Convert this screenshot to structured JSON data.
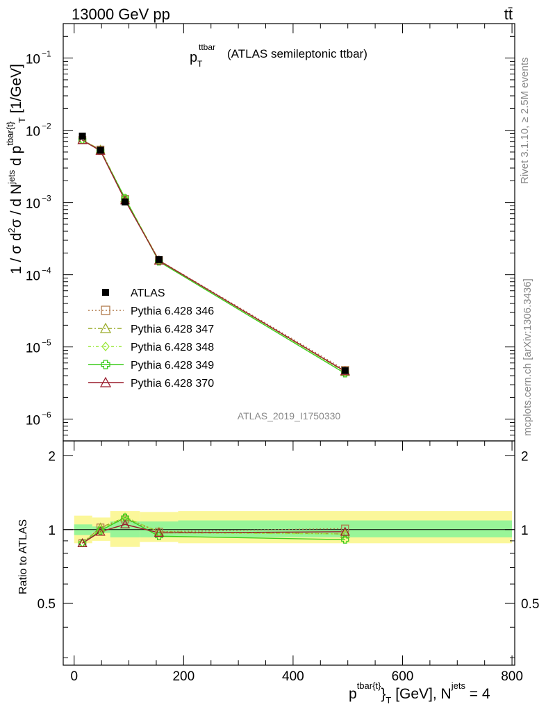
{
  "header": {
    "left": "13000 GeV pp",
    "right": "tt̄"
  },
  "plot_title": {
    "main": "p",
    "sub": "T",
    "sup": "ttbar",
    "rest": "(ATLAS semileptonic ttbar)"
  },
  "side_text": {
    "rivet": "Rivet 3.1.10, ≥ 2.5M events",
    "mcplots": "mcplots.cern.ch [arXiv:1306.3436]"
  },
  "analysis_id": "ATLAS_2019_I1750330",
  "y_axis_label": {
    "part1": "1 / σ d",
    "sup1": "2",
    "part2": "σ / d N",
    "sup2": "jets",
    "part3": " d p",
    "sup3": "tbar{t}",
    "sub3": "T",
    "part4": " [1/GeV]"
  },
  "ratio_axis_label": "Ratio to ATLAS",
  "x_axis_label": {
    "p": "p",
    "sup": "tbar{t}",
    "brace": "}",
    "sub": "T",
    "rest": " [GeV], N",
    "sup2": "jets",
    "end": " = 4"
  },
  "main_ticks": {
    "y": [
      {
        "base": "10",
        "exp": "−1"
      },
      {
        "base": "10",
        "exp": "−2"
      },
      {
        "base": "10",
        "exp": "−3"
      },
      {
        "base": "10",
        "exp": "−4"
      },
      {
        "base": "10",
        "exp": "−5"
      },
      {
        "base": "10",
        "exp": "−6"
      }
    ]
  },
  "ratio_ticks": {
    "left": [
      "2",
      "1",
      "0.5"
    ],
    "right": [
      "2",
      "1",
      "0.5"
    ]
  },
  "x_ticks": [
    "0",
    "200",
    "400",
    "600",
    "800"
  ],
  "legend": [
    {
      "label": "ATLAS",
      "color": "#000000",
      "marker": "square-filled",
      "dash": "none"
    },
    {
      "label": "Pythia 6.428 346",
      "color": "#b07a4a",
      "marker": "square-open",
      "dash": "dotted"
    },
    {
      "label": "Pythia 6.428 347",
      "color": "#9aab2a",
      "marker": "triangle-open",
      "dash": "dashdot"
    },
    {
      "label": "Pythia 6.428 348",
      "color": "#9ae83a",
      "marker": "diamond-open",
      "dash": "dashdot2"
    },
    {
      "label": "Pythia 6.428 349",
      "color": "#3ccc1c",
      "marker": "cross-open",
      "dash": "solid"
    },
    {
      "label": "Pythia 6.428 370",
      "color": "#9a1c2c",
      "marker": "triangle-open",
      "dash": "solid"
    }
  ],
  "chart_data": {
    "type": "line",
    "xlim": [
      -20,
      805
    ],
    "ylim": [
      5e-07,
      0.3
    ],
    "y_scale": "log",
    "ratio_ylim": [
      0.28,
      2.3
    ],
    "ratio_y_scale": "log",
    "x_bin_edges": [
      0,
      33,
      66,
      120,
      190,
      800
    ],
    "x": [
      15,
      48,
      93,
      155,
      495
    ],
    "data": {
      "name": "ATLAS",
      "values": [
        0.0083,
        0.0053,
        0.00102,
        0.000162,
        4.7e-06
      ],
      "ratio_band_stat": [
        [
          0.95,
          1.05
        ],
        [
          0.97,
          1.03
        ],
        [
          0.93,
          1.08
        ],
        [
          0.93,
          1.08
        ],
        [
          0.93,
          1.09
        ]
      ],
      "ratio_band_total": [
        [
          0.88,
          1.14
        ],
        [
          0.9,
          1.12
        ],
        [
          0.85,
          1.19
        ],
        [
          0.89,
          1.18
        ],
        [
          0.88,
          1.19
        ]
      ]
    },
    "series": [
      {
        "name": "Pythia 6.428 346",
        "values": [
          0.0073,
          0.0054,
          0.00112,
          0.000159,
          4.8e-06
        ],
        "ratio": [
          0.88,
          1.02,
          1.1,
          0.98,
          1.01
        ]
      },
      {
        "name": "Pythia 6.428 347",
        "values": [
          0.0073,
          0.0054,
          0.00114,
          0.000158,
          4.5e-06
        ],
        "ratio": [
          0.88,
          1.02,
          1.12,
          0.98,
          0.96
        ]
      },
      {
        "name": "Pythia 6.428 348",
        "values": [
          0.0073,
          0.0053,
          0.00115,
          0.000157,
          4.5e-06
        ],
        "ratio": [
          0.88,
          1.0,
          1.13,
          0.97,
          0.96
        ]
      },
      {
        "name": "Pythia 6.428 349",
        "values": [
          0.0073,
          0.0052,
          0.00114,
          0.000152,
          4.3e-06
        ],
        "ratio": [
          0.88,
          0.99,
          1.12,
          0.94,
          0.91
        ]
      },
      {
        "name": "Pythia 6.428 370",
        "values": [
          0.0073,
          0.0052,
          0.00107,
          0.000157,
          4.6e-06
        ],
        "ratio": [
          0.88,
          0.98,
          1.05,
          0.97,
          0.98
        ]
      }
    ]
  }
}
